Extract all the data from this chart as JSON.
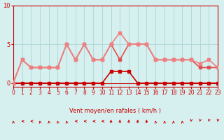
{
  "xlabel": "Vent moyen/en rafales ( km/h )",
  "bg_color": "#d6f0f0",
  "grid_color": "#b0d8d8",
  "xlim": [
    0,
    23
  ],
  "ylim": [
    -0.5,
    10
  ],
  "yticks": [
    0,
    5,
    10
  ],
  "xticks": [
    0,
    1,
    2,
    3,
    4,
    5,
    6,
    7,
    8,
    9,
    10,
    11,
    12,
    13,
    14,
    15,
    16,
    17,
    18,
    19,
    20,
    21,
    22,
    23
  ],
  "line1_x": [
    0,
    1,
    2,
    3,
    4,
    5,
    6,
    7,
    8,
    9,
    10,
    11,
    12,
    13,
    14,
    15,
    16,
    17,
    18,
    19,
    20,
    21,
    22,
    23
  ],
  "line1_y": [
    0,
    0,
    0,
    0,
    0,
    0,
    0,
    0,
    0,
    0,
    0,
    1.5,
    1.5,
    1.5,
    0,
    0,
    0,
    0,
    0,
    0,
    0,
    0,
    0,
    0
  ],
  "line1_color": "#cc0000",
  "line1_lw": 1.2,
  "line2_x": [
    0,
    1,
    2,
    3,
    4,
    5,
    6,
    7,
    8,
    9,
    10,
    11,
    12,
    13,
    14,
    15,
    16,
    17,
    18,
    19,
    20,
    21,
    22,
    23
  ],
  "line2_y": [
    0,
    3,
    2,
    2,
    2,
    2,
    5,
    3,
    5,
    3,
    3,
    5,
    3,
    5,
    5,
    5,
    3,
    3,
    3,
    3,
    3,
    2,
    2,
    2
  ],
  "line2_color": "#e05050",
  "line2_lw": 1.2,
  "line3_x": [
    0,
    1,
    2,
    3,
    4,
    5,
    6,
    7,
    8,
    9,
    10,
    11,
    12,
    13,
    14,
    15,
    16,
    17,
    18,
    19,
    20,
    21,
    22,
    23
  ],
  "line3_y": [
    0,
    3,
    2,
    2,
    2,
    2,
    5,
    3,
    5,
    3,
    3,
    5,
    6.5,
    5,
    5,
    5,
    3,
    3,
    3,
    3,
    3,
    2.5,
    3,
    2
  ],
  "line3_color": "#f08080",
  "line3_lw": 1.2,
  "marker_size": 3,
  "arrow_color": "#cc0000",
  "hline_color": "#cc0000",
  "hline_y": -0.3,
  "spine_color": "#cc0000"
}
